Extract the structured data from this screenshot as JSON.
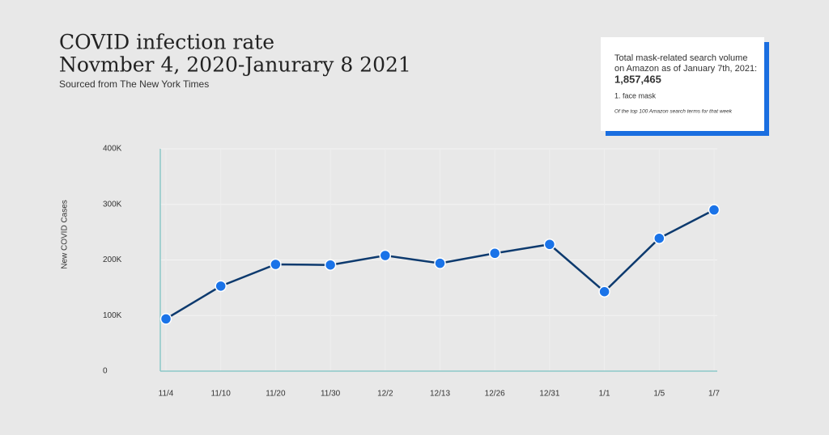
{
  "chart_data": {
    "type": "line",
    "title": [
      "COVID infection rate",
      "Novmber 4, 2020-Janurary 8 2021"
    ],
    "subtitle": "Sourced from The New York Times",
    "y_label": "New COVID Cases",
    "categories": [
      "11/4",
      "11/10",
      "11/20",
      "11/30",
      "12/2",
      "12/13",
      "12/26",
      "12/31",
      "1/1",
      "1/5",
      "1/7"
    ],
    "values": [
      94000,
      153000,
      192000,
      191000,
      208000,
      194000,
      212000,
      228000,
      143000,
      239000,
      290000
    ],
    "color": "#0d3a6e",
    "marker_color": "#1a73e8",
    "ylim": [
      0,
      400000
    ],
    "yticks": [
      0,
      {
        "value": 100000,
        "label": "100K"
      },
      {
        "value": 200000,
        "label": "200K"
      },
      {
        "value": 300000,
        "label": "300K"
      },
      {
        "value": 400000,
        "label": "400K"
      }
    ],
    "grid": true
  },
  "info_box": {
    "lines": [
      "Total mask-related search volume",
      "on Amazon as of January 7th, 2021:"
    ],
    "total": "1,857,465",
    "item": "1. face mask",
    "note": "Of the top 100 Amazon search terms for that week"
  }
}
